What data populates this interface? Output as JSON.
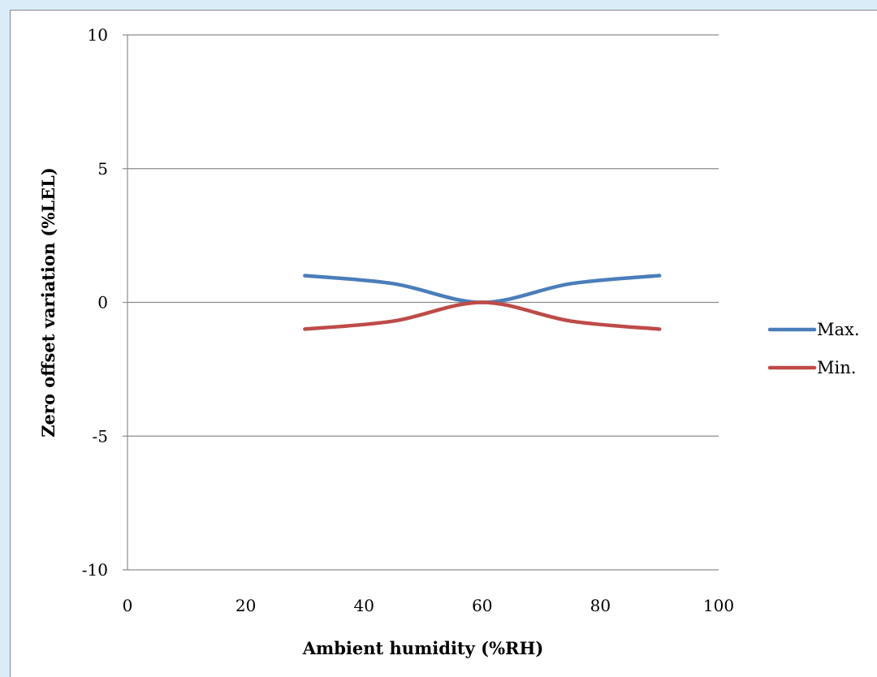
{
  "chart_data": {
    "type": "line",
    "title": "",
    "xlabel": "Ambient humidity (%RH)",
    "ylabel": "Zero offset variation (%LEL)",
    "xlim": [
      0,
      100
    ],
    "ylim": [
      -10,
      10
    ],
    "x_ticks": [
      "0",
      "20",
      "40",
      "60",
      "80",
      "100"
    ],
    "y_ticks": [
      "10",
      "5",
      "0",
      "-5",
      "-10"
    ],
    "grid": "horizontal",
    "legend_position": "right",
    "series": [
      {
        "name": "Max.",
        "color": "#4a7ebb",
        "x": [
          30,
          45,
          60,
          75,
          90
        ],
        "y": [
          1.0,
          0.7,
          0.0,
          0.7,
          1.0
        ]
      },
      {
        "name": "Min.",
        "color": "#be4b48",
        "x": [
          30,
          45,
          60,
          75,
          90
        ],
        "y": [
          -1.0,
          -0.7,
          0.0,
          -0.7,
          -1.0
        ]
      }
    ]
  }
}
